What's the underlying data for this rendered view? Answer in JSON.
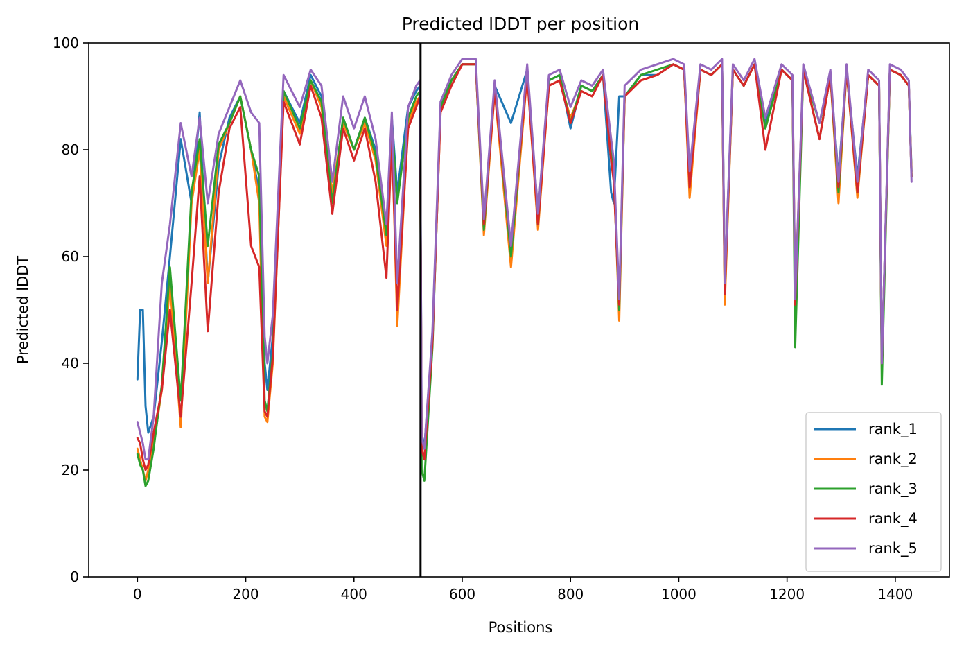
{
  "chart_data": {
    "type": "line",
    "title": "Predicted lDDT per position",
    "xlabel": "Positions",
    "ylabel": "Predicted lDDT",
    "xlim": [
      -90,
      1500
    ],
    "ylim": [
      0,
      100
    ],
    "xticks": [
      0,
      200,
      400,
      600,
      800,
      1000,
      1200,
      1400
    ],
    "yticks": [
      0,
      20,
      40,
      60,
      80,
      100
    ],
    "grid": false,
    "legend_position": "lower right",
    "vline_x": 523,
    "vline_color": "#000000",
    "series": [
      {
        "name": "rank_1",
        "color": "#1f77b4",
        "x": [
          0,
          5,
          10,
          15,
          20,
          30,
          45,
          60,
          80,
          100,
          115,
          130,
          150,
          170,
          190,
          210,
          225,
          235,
          240,
          250,
          270,
          300,
          320,
          340,
          360,
          380,
          400,
          420,
          440,
          460,
          470,
          480,
          500,
          515,
          522,
          525,
          530,
          545,
          560,
          580,
          600,
          625,
          640,
          660,
          690,
          720,
          740,
          760,
          780,
          800,
          820,
          840,
          860,
          875,
          880,
          890,
          900,
          930,
          960,
          990,
          1010,
          1020,
          1040,
          1060,
          1080,
          1085,
          1100,
          1120,
          1140,
          1160,
          1190,
          1210,
          1215,
          1230,
          1260,
          1280,
          1295,
          1310,
          1330,
          1350,
          1370,
          1375,
          1390,
          1410,
          1425,
          1430
        ],
        "values": [
          37,
          50,
          50,
          32,
          27,
          30,
          44,
          60,
          82,
          70,
          87,
          55,
          77,
          86,
          90,
          80,
          72,
          40,
          35,
          45,
          91,
          85,
          94,
          90,
          70,
          86,
          80,
          86,
          80,
          65,
          86,
          72,
          88,
          91,
          92,
          27,
          24,
          45,
          88,
          93,
          96,
          96,
          66,
          92,
          85,
          95,
          68,
          93,
          94,
          84,
          92,
          91,
          94,
          72,
          70,
          90,
          90,
          94,
          94,
          96,
          95,
          73,
          95,
          94,
          96,
          55,
          95,
          92,
          96,
          85,
          95,
          93,
          50,
          95,
          82,
          94,
          75,
          95,
          75,
          94,
          92,
          40,
          95,
          94,
          92,
          76
        ]
      },
      {
        "name": "rank_2",
        "color": "#ff7f0e",
        "x": [
          0,
          5,
          10,
          15,
          20,
          30,
          45,
          60,
          80,
          100,
          115,
          130,
          150,
          170,
          190,
          210,
          225,
          235,
          240,
          250,
          270,
          300,
          320,
          340,
          360,
          380,
          400,
          420,
          440,
          460,
          470,
          480,
          500,
          515,
          522,
          525,
          530,
          545,
          560,
          580,
          600,
          625,
          640,
          660,
          690,
          720,
          740,
          760,
          780,
          800,
          820,
          840,
          860,
          875,
          880,
          890,
          900,
          930,
          960,
          990,
          1010,
          1020,
          1040,
          1060,
          1080,
          1085,
          1100,
          1120,
          1140,
          1160,
          1190,
          1210,
          1215,
          1230,
          1260,
          1280,
          1295,
          1310,
          1330,
          1350,
          1370,
          1375,
          1390,
          1410,
          1425,
          1430
        ],
        "values": [
          24,
          22,
          20,
          18,
          20,
          25,
          35,
          55,
          28,
          70,
          80,
          55,
          80,
          85,
          90,
          80,
          70,
          30,
          29,
          40,
          90,
          83,
          93,
          88,
          72,
          85,
          80,
          85,
          78,
          62,
          84,
          47,
          85,
          89,
          90,
          24,
          22,
          44,
          87,
          93,
          96,
          96,
          64,
          91,
          58,
          94,
          65,
          92,
          93,
          86,
          91,
          90,
          94,
          82,
          76,
          48,
          90,
          93,
          94,
          96,
          95,
          71,
          95,
          94,
          96,
          51,
          95,
          92,
          96,
          84,
          95,
          93,
          52,
          95,
          82,
          94,
          70,
          95,
          71,
          94,
          92,
          39,
          95,
          94,
          92,
          75
        ]
      },
      {
        "name": "rank_3",
        "color": "#2ca02c",
        "x": [
          0,
          5,
          10,
          15,
          20,
          30,
          45,
          60,
          80,
          100,
          115,
          130,
          150,
          170,
          190,
          210,
          225,
          235,
          240,
          250,
          270,
          300,
          320,
          340,
          360,
          380,
          400,
          420,
          440,
          460,
          470,
          480,
          500,
          515,
          522,
          525,
          530,
          545,
          560,
          580,
          600,
          625,
          640,
          660,
          690,
          720,
          740,
          760,
          780,
          800,
          820,
          840,
          860,
          875,
          880,
          890,
          900,
          930,
          960,
          990,
          1010,
          1020,
          1040,
          1060,
          1080,
          1085,
          1100,
          1120,
          1140,
          1160,
          1190,
          1210,
          1215,
          1230,
          1260,
          1280,
          1295,
          1310,
          1330,
          1350,
          1370,
          1375,
          1390,
          1410,
          1425,
          1430
        ],
        "values": [
          23,
          21,
          20,
          17,
          18,
          24,
          36,
          58,
          33,
          72,
          82,
          62,
          81,
          85,
          90,
          80,
          75,
          33,
          31,
          42,
          91,
          84,
          93,
          89,
          70,
          86,
          80,
          86,
          79,
          64,
          85,
          70,
          86,
          90,
          91,
          20,
          18,
          43,
          88,
          93,
          96,
          96,
          65,
          92,
          60,
          95,
          66,
          93,
          94,
          85,
          92,
          91,
          94,
          80,
          75,
          50,
          90,
          94,
          95,
          96,
          95,
          74,
          95,
          94,
          96,
          53,
          95,
          92,
          96,
          84,
          95,
          93,
          43,
          95,
          85,
          94,
          72,
          95,
          72,
          94,
          92,
          36,
          95,
          94,
          92,
          75
        ]
      },
      {
        "name": "rank_4",
        "color": "#d62728",
        "x": [
          0,
          5,
          10,
          15,
          20,
          30,
          45,
          60,
          80,
          100,
          115,
          130,
          150,
          170,
          190,
          210,
          225,
          235,
          240,
          250,
          270,
          300,
          320,
          340,
          360,
          380,
          400,
          420,
          440,
          460,
          470,
          480,
          500,
          515,
          522,
          525,
          530,
          545,
          560,
          580,
          600,
          625,
          640,
          660,
          690,
          720,
          740,
          760,
          780,
          800,
          820,
          840,
          860,
          875,
          880,
          890,
          900,
          930,
          960,
          990,
          1010,
          1020,
          1040,
          1060,
          1080,
          1085,
          1100,
          1120,
          1140,
          1160,
          1190,
          1210,
          1215,
          1230,
          1260,
          1280,
          1295,
          1310,
          1330,
          1350,
          1370,
          1375,
          1390,
          1410,
          1425,
          1430
        ],
        "values": [
          26,
          25,
          22,
          20,
          21,
          27,
          35,
          50,
          30,
          55,
          75,
          46,
          72,
          84,
          88,
          62,
          58,
          31,
          30,
          41,
          89,
          81,
          92,
          86,
          68,
          84,
          78,
          84,
          74,
          56,
          83,
          50,
          84,
          88,
          90,
          24,
          22,
          44,
          87,
          92,
          96,
          96,
          66,
          91,
          62,
          94,
          66,
          92,
          93,
          85,
          91,
          90,
          94,
          78,
          74,
          51,
          90,
          93,
          94,
          96,
          95,
          73,
          95,
          94,
          96,
          53,
          95,
          92,
          96,
          80,
          95,
          93,
          51,
          95,
          82,
          94,
          73,
          95,
          72,
          94,
          92,
          40,
          95,
          94,
          92,
          75
        ]
      },
      {
        "name": "rank_5",
        "color": "#9467bd",
        "x": [
          0,
          5,
          10,
          15,
          20,
          30,
          45,
          60,
          80,
          100,
          115,
          130,
          150,
          170,
          190,
          210,
          225,
          235,
          240,
          250,
          270,
          300,
          320,
          340,
          360,
          380,
          400,
          420,
          440,
          460,
          470,
          480,
          500,
          515,
          522,
          525,
          530,
          545,
          560,
          580,
          600,
          625,
          640,
          660,
          690,
          720,
          740,
          760,
          780,
          800,
          820,
          840,
          860,
          875,
          880,
          890,
          900,
          930,
          960,
          990,
          1010,
          1020,
          1040,
          1060,
          1080,
          1085,
          1100,
          1120,
          1140,
          1160,
          1190,
          1210,
          1215,
          1230,
          1260,
          1280,
          1295,
          1310,
          1330,
          1350,
          1370,
          1375,
          1390,
          1410,
          1425,
          1430
        ],
        "values": [
          29,
          27,
          25,
          22,
          22,
          30,
          55,
          66,
          85,
          75,
          86,
          70,
          83,
          88,
          93,
          87,
          85,
          45,
          40,
          49,
          94,
          88,
          95,
          92,
          74,
          90,
          84,
          90,
          82,
          66,
          87,
          55,
          88,
          92,
          93,
          26,
          24,
          46,
          89,
          94,
          97,
          97,
          67,
          93,
          62,
          96,
          68,
          94,
          95,
          88,
          93,
          92,
          95,
          82,
          78,
          52,
          92,
          95,
          96,
          97,
          96,
          76,
          96,
          95,
          97,
          55,
          96,
          93,
          97,
          86,
          96,
          94,
          52,
          96,
          85,
          95,
          74,
          96,
          74,
          95,
          93,
          40,
          96,
          95,
          93,
          74
        ]
      }
    ]
  }
}
